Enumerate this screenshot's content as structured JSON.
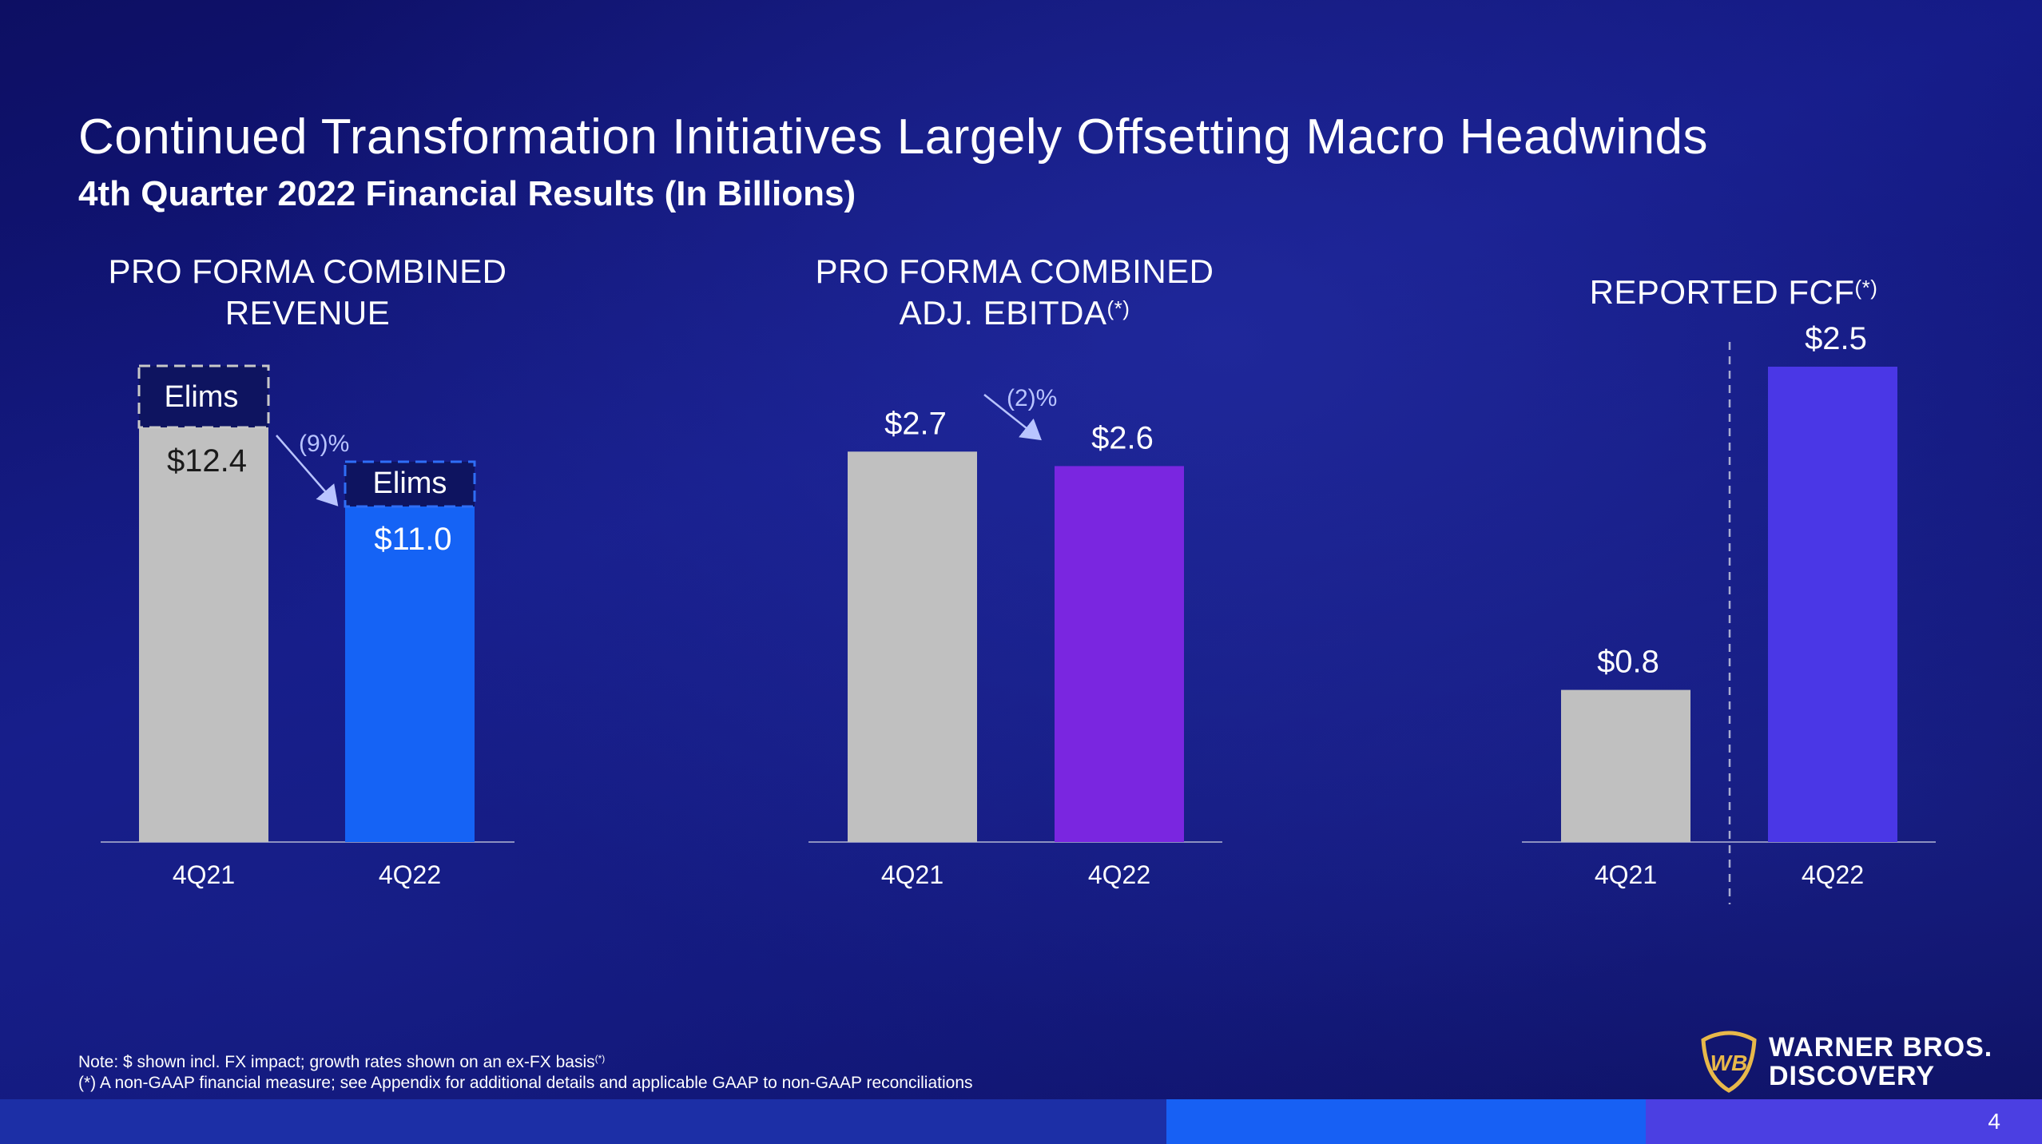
{
  "title": "Continued Transformation Initiatives Largely Offsetting Macro Headwinds",
  "subtitle": "4th Quarter 2022 Financial Results (In Billions)",
  "chart_data": [
    {
      "type": "bar",
      "title": "PRO FORMA COMBINED REVENUE",
      "title_lines": [
        "PRO FORMA COMBINED",
        "REVENUE"
      ],
      "title_sup": "",
      "categories": [
        "4Q21",
        "4Q22"
      ],
      "values": [
        12.4,
        11.0
      ],
      "value_labels": [
        "$12.4",
        "$11.0"
      ],
      "elims_label": "Elims",
      "growth_label": "(9)%",
      "bar_colors": [
        "#c0c0c0",
        "#1563f5"
      ]
    },
    {
      "type": "bar",
      "title": "PRO FORMA COMBINED ADJ. EBITDA(*)",
      "title_lines": [
        "PRO FORMA COMBINED",
        "ADJ. EBITDA"
      ],
      "title_sup": "(*)",
      "categories": [
        "4Q21",
        "4Q22"
      ],
      "values": [
        2.7,
        2.6
      ],
      "value_labels": [
        "$2.7",
        "$2.6"
      ],
      "growth_label": "(2)%",
      "bar_colors": [
        "#c0c0c0",
        "#7a26e0"
      ]
    },
    {
      "type": "bar",
      "title": "REPORTED FCF(*)",
      "title_lines": [
        "REPORTED FCF"
      ],
      "title_sup": "(*)",
      "categories": [
        "4Q21",
        "4Q22"
      ],
      "values": [
        0.8,
        2.5
      ],
      "value_labels": [
        "$0.8",
        "$2.5"
      ],
      "bar_colors": [
        "#c0c0c0",
        "#4a37e6"
      ]
    }
  ],
  "footnotes": {
    "note": "Note: $ shown incl. FX impact; growth rates shown on an ex-FX basis",
    "note_sup": "(*)",
    "definition": "(*) A non-GAAP financial measure; see Appendix for additional details and applicable GAAP to non-GAAP reconciliations"
  },
  "logo": {
    "line1": "WARNER BROS.",
    "line2": "DISCOVERY",
    "icon": "wb-shield-icon",
    "monogram": "WB"
  },
  "page_number": "4",
  "colors": {
    "background": "#10146e",
    "bar_gray": "#c0c0c0",
    "revenue_blue": "#1563f5",
    "ebitda_purple": "#7a26e0",
    "fcf_violet": "#4a37e6",
    "growth_text": "#b9c4ff",
    "logo_gold": "#e8b84a"
  }
}
